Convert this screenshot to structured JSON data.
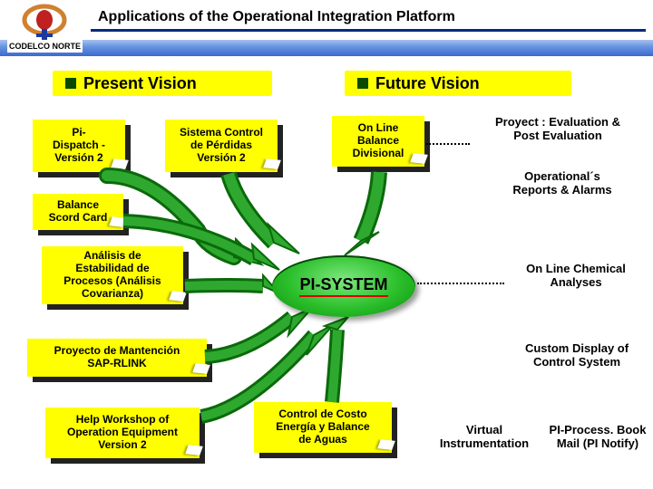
{
  "title": "Applications of the  Operational Integration Platform",
  "org": "CODELCO NORTE",
  "visions": {
    "present": "Present Vision",
    "future": "Future Vision"
  },
  "boxes": {
    "pi_dispatch": "Pi-\nDispatch -\nVersión 2",
    "sistema_control": "Sistema Control\nde Pérdidas\nVersión 2",
    "online_balance": "On Line\nBalance\nDivisional",
    "balance_scord": "Balance\nScord Card",
    "analisis": "Análisis de\nEstabilidad de\nProcesos (Análisis\nCovarianza)",
    "mantencion": "Proyecto de Mantención\nSAP-RLINK",
    "help_workshop": "Help Workshop  of\nOperation Equipment\nVersion 2",
    "control_costo": "Control de Costo\nEnergía y Balance\nde  Aguas"
  },
  "core": "PI-SYSTEM",
  "labels": {
    "proyect_eval": "Proyect : Evaluation &\nPost Evaluation",
    "op_reports": "Operational´s\nReports & Alarms",
    "online_chem": "On Line Chemical\nAnalyses",
    "custom_display": "Custom Display of\nControl System",
    "virtual_instr": "Virtual\nInstrumentation",
    "pi_processbook": "PI-Process. Book\nMail (PI Notify)"
  },
  "colors": {
    "yellow": "#ffff00",
    "arrow_green": "#2fa82f",
    "arrow_green_dark": "#0a6a0a",
    "navy": "#002b80"
  }
}
